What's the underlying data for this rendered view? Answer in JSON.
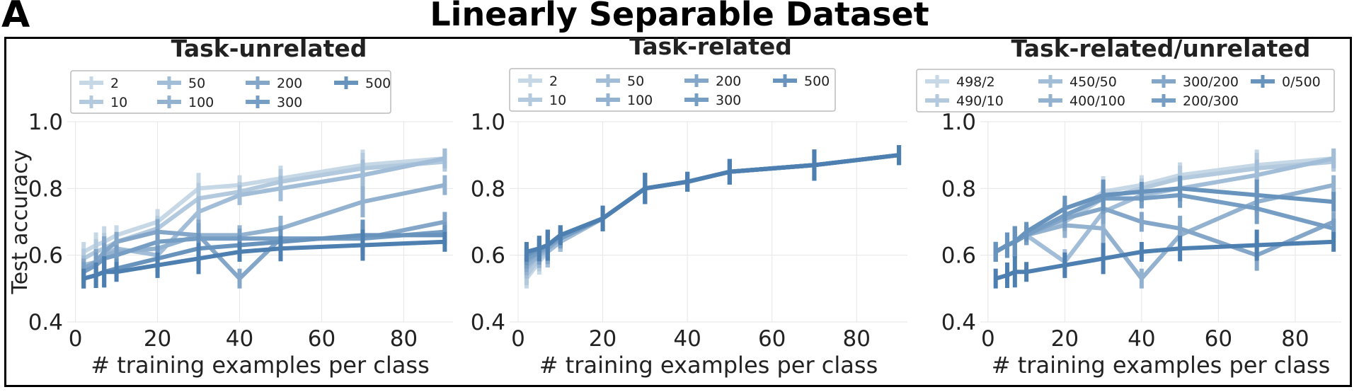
{
  "panel_label": "A",
  "figure_title": "Linearly Separable Dataset",
  "colors": {
    "palette": [
      "#c6d7e6",
      "#b3c9de",
      "#a2bdd7",
      "#93b2d0",
      "#84a7c9",
      "#769dc3",
      "#6893bd",
      "#4d7fb0"
    ]
  },
  "chart_data": [
    {
      "type": "line",
      "title": "Task-unrelated",
      "xlabel": "# training examples per class",
      "ylabel": "Test accuracy",
      "xlim": [
        -2,
        92
      ],
      "ylim": [
        0.4,
        1.0
      ],
      "xticks": [
        "0",
        "20",
        "40",
        "60",
        "80"
      ],
      "yticks": [
        "0.4",
        "0.6",
        "0.8",
        "1.0"
      ],
      "grid": true,
      "legend": {
        "position": "top",
        "columns": 4
      },
      "x": [
        2,
        5,
        7,
        10,
        20,
        30,
        40,
        50,
        70,
        90
      ],
      "series": [
        {
          "name": "2",
          "values": [
            0.61,
            0.63,
            0.64,
            0.66,
            0.7,
            0.8,
            0.81,
            0.83,
            0.87,
            0.89
          ]
        },
        {
          "name": "10",
          "values": [
            0.59,
            0.61,
            0.62,
            0.64,
            0.68,
            0.77,
            0.79,
            0.82,
            0.86,
            0.88
          ]
        },
        {
          "name": "50",
          "values": [
            0.57,
            0.58,
            0.6,
            0.62,
            0.6,
            0.73,
            0.78,
            0.8,
            0.84,
            0.89
          ]
        },
        {
          "name": "100",
          "values": [
            0.56,
            0.58,
            0.6,
            0.61,
            0.62,
            0.66,
            0.66,
            0.68,
            0.76,
            0.81
          ]
        },
        {
          "name": "200",
          "values": [
            0.56,
            0.58,
            0.61,
            0.64,
            0.67,
            0.66,
            0.53,
            0.65,
            0.65,
            0.7
          ]
        },
        {
          "name": "300",
          "values": [
            0.55,
            0.57,
            0.59,
            0.6,
            0.64,
            0.65,
            0.65,
            0.65,
            0.65,
            0.67
          ]
        },
        {
          "name": "500",
          "values": [
            0.53,
            0.54,
            0.55,
            0.56,
            0.59,
            0.62,
            0.63,
            0.64,
            0.66,
            0.66
          ]
        },
        {
          "name": "",
          "values": [
            0.53,
            0.54,
            0.55,
            0.55,
            0.57,
            0.59,
            0.61,
            0.62,
            0.63,
            0.64
          ]
        }
      ]
    },
    {
      "type": "line",
      "title": "Task-related",
      "xlabel": "# training examples per class",
      "ylabel": "",
      "xlim": [
        -2,
        92
      ],
      "ylim": [
        0.4,
        1.0
      ],
      "xticks": [
        "0",
        "20",
        "40",
        "60",
        "80"
      ],
      "yticks": [
        "0.4",
        "0.6",
        "0.8",
        "1.0"
      ],
      "grid": true,
      "legend": {
        "position": "top",
        "columns": 4
      },
      "x": [
        2,
        5,
        7,
        10,
        20,
        30,
        40,
        50,
        70,
        90
      ],
      "series": [
        {
          "name": "2",
          "values": [
            0.53,
            0.58,
            0.61,
            0.64,
            0.71,
            0.8,
            0.82,
            0.85,
            0.87,
            0.9
          ]
        },
        {
          "name": "10",
          "values": [
            0.54,
            0.59,
            0.61,
            0.64,
            0.71,
            0.8,
            0.82,
            0.85,
            0.87,
            0.9
          ]
        },
        {
          "name": "50",
          "values": [
            0.56,
            0.6,
            0.61,
            0.64,
            0.71,
            0.8,
            0.82,
            0.85,
            0.87,
            0.9
          ]
        },
        {
          "name": "100",
          "values": [
            0.57,
            0.6,
            0.62,
            0.65,
            0.71,
            0.8,
            0.82,
            0.85,
            0.87,
            0.9
          ]
        },
        {
          "name": "200",
          "values": [
            0.58,
            0.61,
            0.62,
            0.65,
            0.71,
            0.8,
            0.82,
            0.85,
            0.87,
            0.9
          ]
        },
        {
          "name": "300",
          "values": [
            0.59,
            0.61,
            0.63,
            0.65,
            0.71,
            0.8,
            0.82,
            0.85,
            0.87,
            0.9
          ]
        },
        {
          "name": "500",
          "values": [
            0.6,
            0.62,
            0.63,
            0.66,
            0.71,
            0.8,
            0.82,
            0.85,
            0.87,
            0.9
          ]
        },
        {
          "name": "",
          "values": [
            0.61,
            0.62,
            0.63,
            0.66,
            0.71,
            0.8,
            0.82,
            0.85,
            0.87,
            0.9
          ]
        }
      ]
    },
    {
      "type": "line",
      "title": "Task-related/unrelated",
      "xlabel": "# training examples per class",
      "ylabel": "",
      "xlim": [
        -2,
        92
      ],
      "ylim": [
        0.4,
        1.0
      ],
      "xticks": [
        "0",
        "20",
        "40",
        "60",
        "80"
      ],
      "yticks": [
        "0.4",
        "0.6",
        "0.8",
        "1.0"
      ],
      "grid": true,
      "legend": {
        "position": "top",
        "columns": 4
      },
      "x": [
        2,
        5,
        7,
        10,
        20,
        30,
        40,
        50,
        70,
        90
      ],
      "series": [
        {
          "name": "498/2",
          "values": [
            0.61,
            0.63,
            0.64,
            0.66,
            0.71,
            0.79,
            0.81,
            0.84,
            0.87,
            0.89
          ]
        },
        {
          "name": "490/10",
          "values": [
            0.61,
            0.63,
            0.64,
            0.66,
            0.7,
            0.77,
            0.8,
            0.83,
            0.86,
            0.88
          ]
        },
        {
          "name": "450/50",
          "values": [
            0.61,
            0.63,
            0.64,
            0.66,
            0.58,
            0.73,
            0.78,
            0.8,
            0.84,
            0.89
          ]
        },
        {
          "name": "400/100",
          "values": [
            0.61,
            0.63,
            0.64,
            0.66,
            0.69,
            0.68,
            0.53,
            0.66,
            0.76,
            0.81
          ]
        },
        {
          "name": "300/200",
          "values": [
            0.61,
            0.63,
            0.64,
            0.66,
            0.71,
            0.74,
            0.7,
            0.68,
            0.6,
            0.7
          ]
        },
        {
          "name": "200/300",
          "values": [
            0.61,
            0.63,
            0.64,
            0.66,
            0.72,
            0.77,
            0.77,
            0.78,
            0.74,
            0.68
          ]
        },
        {
          "name": "0/500",
          "values": [
            0.61,
            0.63,
            0.64,
            0.67,
            0.74,
            0.78,
            0.79,
            0.8,
            0.78,
            0.76
          ]
        },
        {
          "name": "",
          "values": [
            0.53,
            0.54,
            0.55,
            0.55,
            0.57,
            0.59,
            0.61,
            0.62,
            0.63,
            0.64
          ]
        }
      ]
    }
  ]
}
